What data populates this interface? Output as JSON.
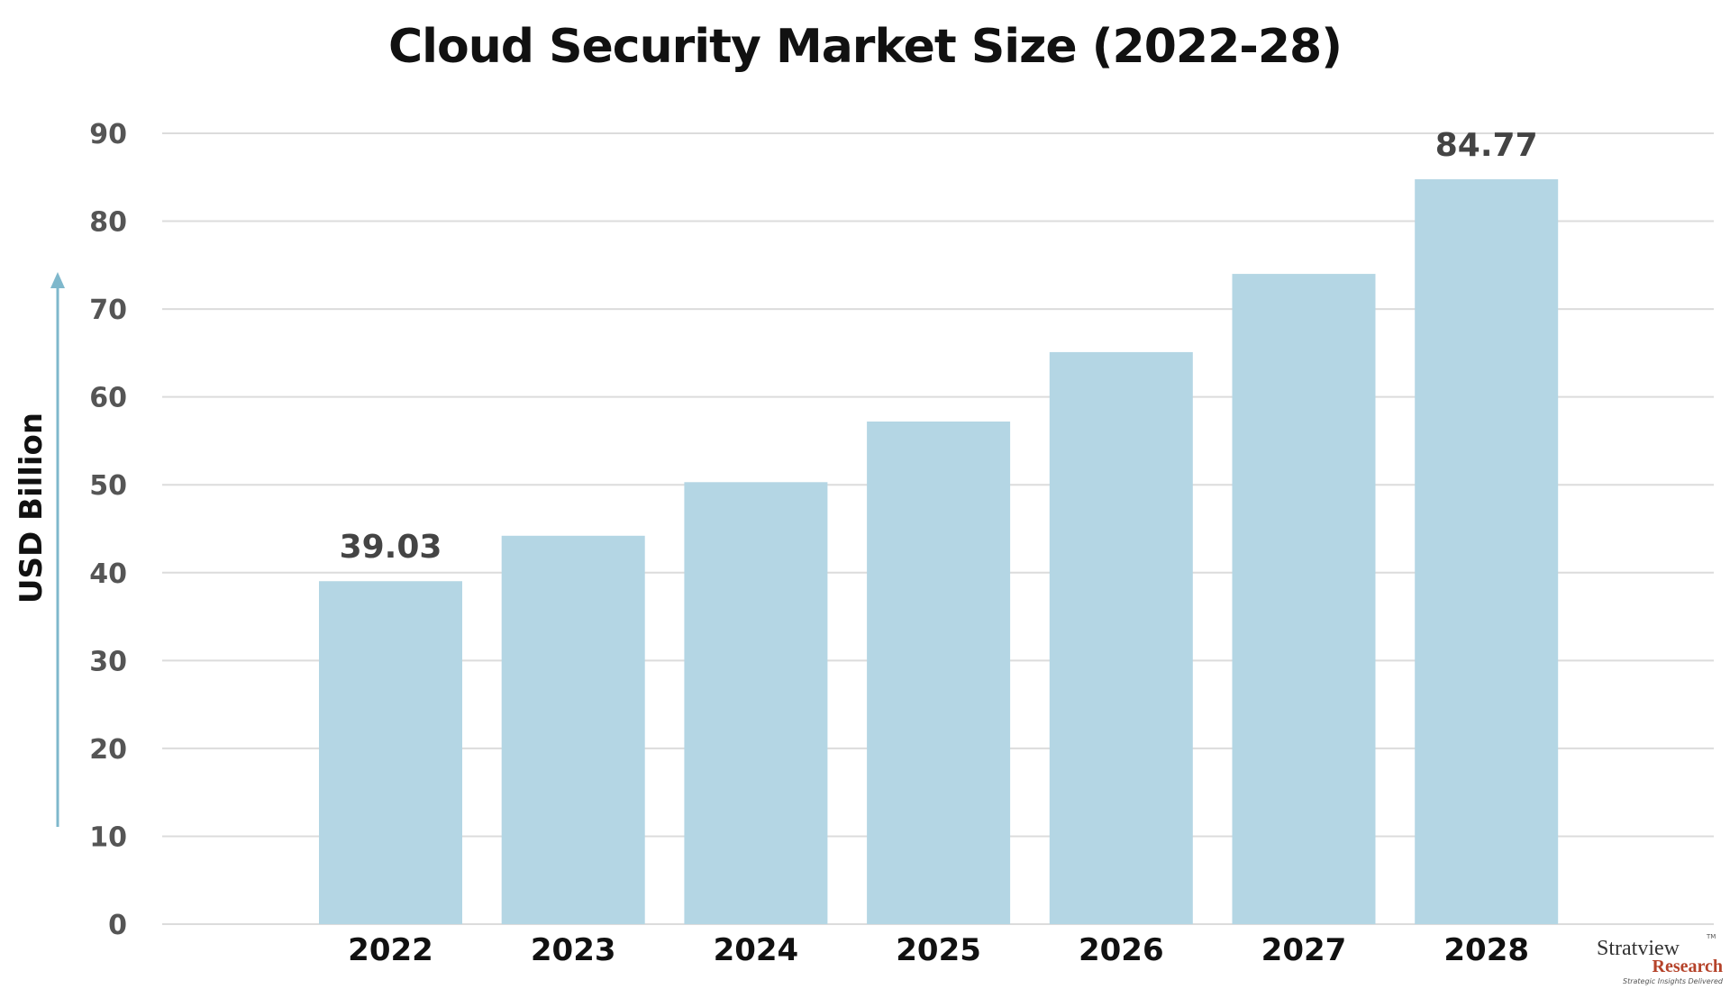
{
  "chart_data": {
    "type": "bar",
    "title": "Cloud Security Market Size (2022-28)",
    "xlabel": "",
    "ylabel": "USD Billion",
    "categories": [
      "2022",
      "2023",
      "2024",
      "2025",
      "2026",
      "2027",
      "2028"
    ],
    "values": [
      39.03,
      44.2,
      50.3,
      57.2,
      65.1,
      74.0,
      84.77
    ],
    "data_labels": {
      "2022": "39.03",
      "2028": "84.77"
    },
    "ylim": [
      0,
      90
    ],
    "yticks": [
      0,
      10,
      20,
      30,
      40,
      50,
      60,
      70,
      80,
      90
    ],
    "grid": true,
    "bar_color": "#b4d6e4",
    "axis_arrow_color": "#7fb8cc"
  },
  "logo": {
    "name": "Stratview",
    "tm": "TM",
    "sub": "Research",
    "tagline": "Strategic Insights Delivered"
  }
}
